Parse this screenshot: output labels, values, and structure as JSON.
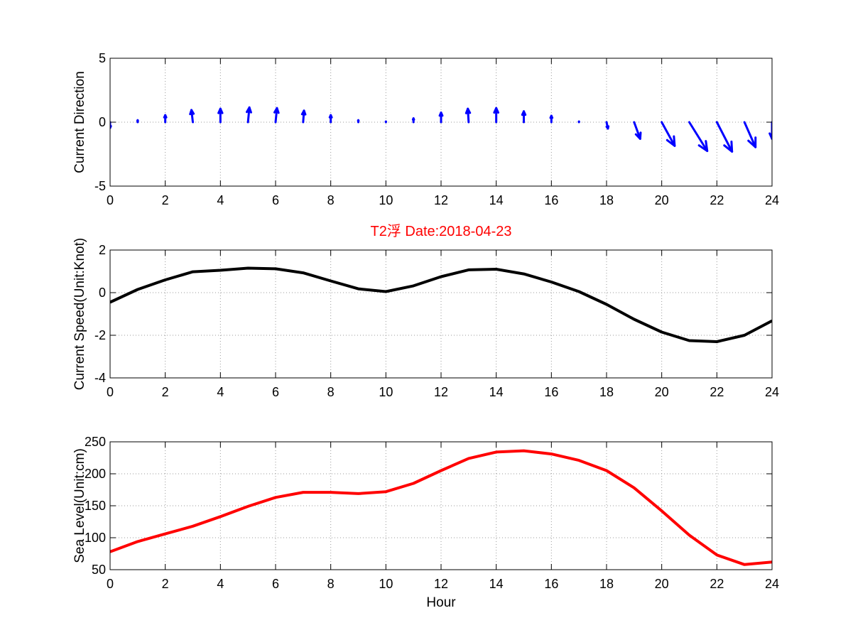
{
  "title": "T2浮    Date:2018-04-23",
  "colors": {
    "direction": "#0000ff",
    "speed": "#000000",
    "sea_level": "#ff0000",
    "title": "#ff0000",
    "grid": "#999999"
  },
  "chart_data": [
    {
      "type": "quiver",
      "ylabel": "Current Direction",
      "xlabel": "",
      "xlim": [
        0,
        24
      ],
      "ylim": [
        -5,
        5
      ],
      "xticks": [
        0,
        2,
        4,
        6,
        8,
        10,
        12,
        14,
        16,
        18,
        20,
        22,
        24
      ],
      "yticks": [
        -5,
        0,
        5
      ],
      "grid": true,
      "series": [
        {
          "x": [
            0,
            1,
            2,
            3,
            4,
            5,
            6,
            7,
            8,
            9,
            10,
            11,
            12,
            13,
            14,
            15,
            16,
            17,
            18,
            19,
            20,
            21,
            22,
            23,
            24
          ],
          "u": [
            0.0,
            0.0,
            0.0,
            -0.05,
            0.0,
            0.05,
            0.05,
            0.03,
            0.0,
            0.0,
            0.0,
            0.0,
            0.0,
            -0.03,
            0.0,
            0.0,
            0.0,
            0.0,
            0.05,
            0.22,
            0.47,
            0.65,
            0.55,
            0.4,
            0.0
          ],
          "v": [
            -0.45,
            0.15,
            0.55,
            0.95,
            1.05,
            1.15,
            1.1,
            0.9,
            0.55,
            0.15,
            0.05,
            0.3,
            0.75,
            1.05,
            1.1,
            0.85,
            0.5,
            0.05,
            -0.5,
            -1.3,
            -1.85,
            -2.25,
            -2.3,
            -1.95,
            -1.3
          ]
        }
      ]
    },
    {
      "type": "line",
      "ylabel": "Current Speed(Unit:Knot)",
      "xlabel": "",
      "xlim": [
        0,
        24
      ],
      "ylim": [
        -4,
        2
      ],
      "xticks": [
        0,
        2,
        4,
        6,
        8,
        10,
        12,
        14,
        16,
        18,
        20,
        22,
        24
      ],
      "yticks": [
        -4,
        -2,
        0,
        2
      ],
      "grid": true,
      "series": [
        {
          "x": [
            0,
            1,
            2,
            3,
            4,
            5,
            6,
            7,
            8,
            9,
            10,
            11,
            12,
            13,
            14,
            15,
            16,
            17,
            18,
            19,
            20,
            21,
            22,
            23,
            24
          ],
          "y": [
            -0.45,
            0.15,
            0.6,
            0.98,
            1.05,
            1.15,
            1.12,
            0.93,
            0.55,
            0.18,
            0.05,
            0.32,
            0.75,
            1.07,
            1.1,
            0.88,
            0.5,
            0.05,
            -0.55,
            -1.25,
            -1.85,
            -2.25,
            -2.3,
            -2.0,
            -1.32
          ]
        }
      ]
    },
    {
      "type": "line",
      "ylabel": "Sea Level(Unit:cm)",
      "xlabel": "Hour",
      "xlim": [
        0,
        24
      ],
      "ylim": [
        50,
        250
      ],
      "xticks": [
        0,
        2,
        4,
        6,
        8,
        10,
        12,
        14,
        16,
        18,
        20,
        22,
        24
      ],
      "yticks": [
        50,
        100,
        150,
        200,
        250
      ],
      "grid": true,
      "series": [
        {
          "x": [
            0,
            1,
            2,
            3,
            4,
            5,
            6,
            7,
            8,
            9,
            10,
            11,
            12,
            13,
            14,
            15,
            16,
            17,
            18,
            19,
            20,
            21,
            22,
            23,
            24
          ],
          "y": [
            78,
            94,
            106,
            118,
            133,
            149,
            163,
            171,
            171,
            169,
            172,
            185,
            205,
            224,
            234,
            236,
            231,
            221,
            205,
            178,
            142,
            104,
            73,
            58,
            62
          ]
        }
      ]
    }
  ]
}
